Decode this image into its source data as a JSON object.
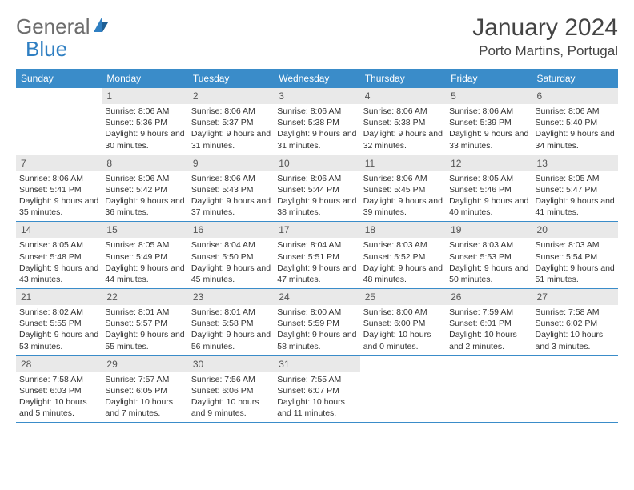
{
  "logo": {
    "text1": "General",
    "text2": "Blue"
  },
  "title": "January 2024",
  "location": "Porto Martins, Portugal",
  "colors": {
    "header_bg": "#3a8cc9",
    "header_text": "#ffffff",
    "daynum_bg": "#e9e9e9",
    "border": "#3a8cc9",
    "logo_gray": "#6d6d6d",
    "logo_blue": "#2f7fc2"
  },
  "day_names": [
    "Sunday",
    "Monday",
    "Tuesday",
    "Wednesday",
    "Thursday",
    "Friday",
    "Saturday"
  ],
  "weeks": [
    [
      {
        "num": "",
        "sunrise": "",
        "sunset": "",
        "daylight": ""
      },
      {
        "num": "1",
        "sunrise": "Sunrise: 8:06 AM",
        "sunset": "Sunset: 5:36 PM",
        "daylight": "Daylight: 9 hours and 30 minutes."
      },
      {
        "num": "2",
        "sunrise": "Sunrise: 8:06 AM",
        "sunset": "Sunset: 5:37 PM",
        "daylight": "Daylight: 9 hours and 31 minutes."
      },
      {
        "num": "3",
        "sunrise": "Sunrise: 8:06 AM",
        "sunset": "Sunset: 5:38 PM",
        "daylight": "Daylight: 9 hours and 31 minutes."
      },
      {
        "num": "4",
        "sunrise": "Sunrise: 8:06 AM",
        "sunset": "Sunset: 5:38 PM",
        "daylight": "Daylight: 9 hours and 32 minutes."
      },
      {
        "num": "5",
        "sunrise": "Sunrise: 8:06 AM",
        "sunset": "Sunset: 5:39 PM",
        "daylight": "Daylight: 9 hours and 33 minutes."
      },
      {
        "num": "6",
        "sunrise": "Sunrise: 8:06 AM",
        "sunset": "Sunset: 5:40 PM",
        "daylight": "Daylight: 9 hours and 34 minutes."
      }
    ],
    [
      {
        "num": "7",
        "sunrise": "Sunrise: 8:06 AM",
        "sunset": "Sunset: 5:41 PM",
        "daylight": "Daylight: 9 hours and 35 minutes."
      },
      {
        "num": "8",
        "sunrise": "Sunrise: 8:06 AM",
        "sunset": "Sunset: 5:42 PM",
        "daylight": "Daylight: 9 hours and 36 minutes."
      },
      {
        "num": "9",
        "sunrise": "Sunrise: 8:06 AM",
        "sunset": "Sunset: 5:43 PM",
        "daylight": "Daylight: 9 hours and 37 minutes."
      },
      {
        "num": "10",
        "sunrise": "Sunrise: 8:06 AM",
        "sunset": "Sunset: 5:44 PM",
        "daylight": "Daylight: 9 hours and 38 minutes."
      },
      {
        "num": "11",
        "sunrise": "Sunrise: 8:06 AM",
        "sunset": "Sunset: 5:45 PM",
        "daylight": "Daylight: 9 hours and 39 minutes."
      },
      {
        "num": "12",
        "sunrise": "Sunrise: 8:05 AM",
        "sunset": "Sunset: 5:46 PM",
        "daylight": "Daylight: 9 hours and 40 minutes."
      },
      {
        "num": "13",
        "sunrise": "Sunrise: 8:05 AM",
        "sunset": "Sunset: 5:47 PM",
        "daylight": "Daylight: 9 hours and 41 minutes."
      }
    ],
    [
      {
        "num": "14",
        "sunrise": "Sunrise: 8:05 AM",
        "sunset": "Sunset: 5:48 PM",
        "daylight": "Daylight: 9 hours and 43 minutes."
      },
      {
        "num": "15",
        "sunrise": "Sunrise: 8:05 AM",
        "sunset": "Sunset: 5:49 PM",
        "daylight": "Daylight: 9 hours and 44 minutes."
      },
      {
        "num": "16",
        "sunrise": "Sunrise: 8:04 AM",
        "sunset": "Sunset: 5:50 PM",
        "daylight": "Daylight: 9 hours and 45 minutes."
      },
      {
        "num": "17",
        "sunrise": "Sunrise: 8:04 AM",
        "sunset": "Sunset: 5:51 PM",
        "daylight": "Daylight: 9 hours and 47 minutes."
      },
      {
        "num": "18",
        "sunrise": "Sunrise: 8:03 AM",
        "sunset": "Sunset: 5:52 PM",
        "daylight": "Daylight: 9 hours and 48 minutes."
      },
      {
        "num": "19",
        "sunrise": "Sunrise: 8:03 AM",
        "sunset": "Sunset: 5:53 PM",
        "daylight": "Daylight: 9 hours and 50 minutes."
      },
      {
        "num": "20",
        "sunrise": "Sunrise: 8:03 AM",
        "sunset": "Sunset: 5:54 PM",
        "daylight": "Daylight: 9 hours and 51 minutes."
      }
    ],
    [
      {
        "num": "21",
        "sunrise": "Sunrise: 8:02 AM",
        "sunset": "Sunset: 5:55 PM",
        "daylight": "Daylight: 9 hours and 53 minutes."
      },
      {
        "num": "22",
        "sunrise": "Sunrise: 8:01 AM",
        "sunset": "Sunset: 5:57 PM",
        "daylight": "Daylight: 9 hours and 55 minutes."
      },
      {
        "num": "23",
        "sunrise": "Sunrise: 8:01 AM",
        "sunset": "Sunset: 5:58 PM",
        "daylight": "Daylight: 9 hours and 56 minutes."
      },
      {
        "num": "24",
        "sunrise": "Sunrise: 8:00 AM",
        "sunset": "Sunset: 5:59 PM",
        "daylight": "Daylight: 9 hours and 58 minutes."
      },
      {
        "num": "25",
        "sunrise": "Sunrise: 8:00 AM",
        "sunset": "Sunset: 6:00 PM",
        "daylight": "Daylight: 10 hours and 0 minutes."
      },
      {
        "num": "26",
        "sunrise": "Sunrise: 7:59 AM",
        "sunset": "Sunset: 6:01 PM",
        "daylight": "Daylight: 10 hours and 2 minutes."
      },
      {
        "num": "27",
        "sunrise": "Sunrise: 7:58 AM",
        "sunset": "Sunset: 6:02 PM",
        "daylight": "Daylight: 10 hours and 3 minutes."
      }
    ],
    [
      {
        "num": "28",
        "sunrise": "Sunrise: 7:58 AM",
        "sunset": "Sunset: 6:03 PM",
        "daylight": "Daylight: 10 hours and 5 minutes."
      },
      {
        "num": "29",
        "sunrise": "Sunrise: 7:57 AM",
        "sunset": "Sunset: 6:05 PM",
        "daylight": "Daylight: 10 hours and 7 minutes."
      },
      {
        "num": "30",
        "sunrise": "Sunrise: 7:56 AM",
        "sunset": "Sunset: 6:06 PM",
        "daylight": "Daylight: 10 hours and 9 minutes."
      },
      {
        "num": "31",
        "sunrise": "Sunrise: 7:55 AM",
        "sunset": "Sunset: 6:07 PM",
        "daylight": "Daylight: 10 hours and 11 minutes."
      },
      {
        "num": "",
        "sunrise": "",
        "sunset": "",
        "daylight": ""
      },
      {
        "num": "",
        "sunrise": "",
        "sunset": "",
        "daylight": ""
      },
      {
        "num": "",
        "sunrise": "",
        "sunset": "",
        "daylight": ""
      }
    ]
  ]
}
